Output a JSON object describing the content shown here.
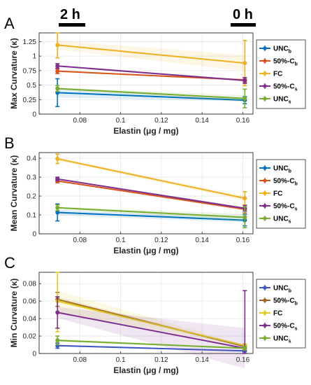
{
  "header": {
    "left_time": "2 h",
    "right_time": "0 h"
  },
  "colors": {
    "UNCb": "#0072bd",
    "50Cb": "#d95319",
    "FC": "#edb120",
    "50Cs": "#7e2f8e",
    "UNCs": "#77ac30",
    "UNCb_C": "#3c55c6",
    "50Cb_C": "#a0641e",
    "FC_C": "#e0cc1c"
  },
  "chart_data": [
    {
      "type": "line",
      "panel": "A",
      "title": "",
      "xlabel": "Elastin (μg / mg)",
      "ylabel": "Max Curvature (κ)",
      "xlim": [
        0.06,
        0.165
      ],
      "ylim": [
        0,
        1.4
      ],
      "xticks": [
        "0.08",
        "0.1",
        "0.12",
        "0.14",
        "0.16"
      ],
      "yticks": [
        "0",
        "0.25",
        "0.5",
        "0.75",
        "1",
        "1.25"
      ],
      "grid": true,
      "legend_position": "right",
      "x": [
        0.069,
        0.161
      ],
      "series": [
        {
          "name": "UNC",
          "sub": "b",
          "color_key": "UNCb",
          "values": [
            0.37,
            0.24
          ],
          "err": [
            0.24,
            0.06
          ]
        },
        {
          "name": "50%-C",
          "sub": "b",
          "color_key": "50Cb",
          "values": [
            0.74,
            0.59
          ],
          "err": [
            0.04,
            0.04
          ]
        },
        {
          "name": "FC",
          "sub": "",
          "color_key": "FC",
          "values": [
            1.19,
            0.88
          ],
          "err": [
            0.22,
            0.39
          ]
        },
        {
          "name": "50%-C",
          "sub": "s",
          "color_key": "50Cs",
          "values": [
            0.83,
            0.58
          ],
          "err": [
            0.04,
            0.05
          ]
        },
        {
          "name": "UNC",
          "sub": "s",
          "color_key": "UNCs",
          "values": [
            0.44,
            0.27
          ],
          "err": [
            0.05,
            0.16
          ]
        }
      ]
    },
    {
      "type": "line",
      "panel": "B",
      "title": "",
      "xlabel": "Elastin (μg / mg)",
      "ylabel": "Mean Curvature (κ)",
      "xlim": [
        0.06,
        0.165
      ],
      "ylim": [
        0,
        0.43
      ],
      "xticks": [
        "0.08",
        "0.1",
        "0.12",
        "0.14",
        "0.16"
      ],
      "yticks": [
        "0",
        "0.1",
        "0.2",
        "0.3",
        "0.4"
      ],
      "grid": true,
      "legend_position": "right",
      "x": [
        0.069,
        0.161
      ],
      "series": [
        {
          "name": "UNC",
          "sub": "b",
          "color_key": "UNCb",
          "values": [
            0.113,
            0.072
          ],
          "err": [
            0.045,
            0.03
          ]
        },
        {
          "name": "50%-C",
          "sub": "b",
          "color_key": "50Cb",
          "values": [
            0.28,
            0.13
          ],
          "err": [
            0.01,
            0.02
          ]
        },
        {
          "name": "FC",
          "sub": "",
          "color_key": "FC",
          "values": [
            0.397,
            0.188
          ],
          "err": [
            0.025,
            0.035
          ]
        },
        {
          "name": "50%-C",
          "sub": "s",
          "color_key": "50Cs",
          "values": [
            0.29,
            0.135
          ],
          "err": [
            0.01,
            0.015
          ]
        },
        {
          "name": "UNC",
          "sub": "s",
          "color_key": "UNCs",
          "values": [
            0.138,
            0.087
          ],
          "err": [
            0.015,
            0.055
          ]
        }
      ]
    },
    {
      "type": "line",
      "panel": "C",
      "title": "",
      "xlabel": "Elastin (μg / mg)",
      "ylabel": "Min Curvature (κ)",
      "xlim": [
        0.06,
        0.165
      ],
      "ylim": [
        0,
        0.093
      ],
      "xticks": [
        "0.08",
        "0.1",
        "0.12",
        "0.14",
        "0.16"
      ],
      "yticks": [
        "0",
        "0.02",
        "0.04",
        "0.06",
        "0.08"
      ],
      "grid": true,
      "legend_position": "right",
      "x": [
        0.069,
        0.161
      ],
      "series": [
        {
          "name": "UNC",
          "sub": "b",
          "color_key": "UNCb_C",
          "values": [
            0.009,
            0.003
          ],
          "err": [
            0.003,
            0.001
          ]
        },
        {
          "name": "50%-C",
          "sub": "b",
          "color_key": "50Cb_C",
          "values": [
            0.062,
            0.008
          ],
          "err": [
            0.008,
            0.002
          ]
        },
        {
          "name": "FC",
          "sub": "",
          "color_key": "FC_C",
          "values": [
            0.06,
            0.009
          ],
          "err": [
            0.035,
            0.002
          ]
        },
        {
          "name": "50%-C",
          "sub": "s",
          "color_key": "50Cs",
          "values": [
            0.047,
            0.006
          ],
          "err": [
            0.018,
            0.066
          ]
        },
        {
          "name": "UNC",
          "sub": "s",
          "color_key": "UNCs",
          "values": [
            0.015,
            0.006
          ],
          "err": [
            0.005,
            0.002
          ]
        }
      ]
    }
  ]
}
